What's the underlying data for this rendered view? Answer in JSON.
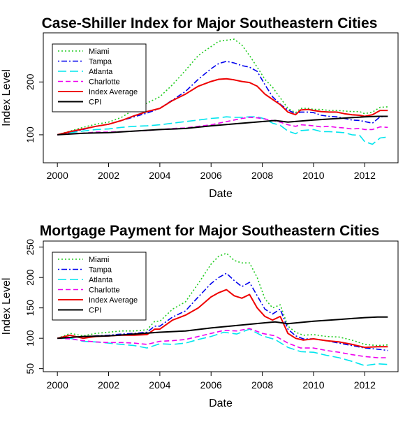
{
  "chart_data": [
    {
      "type": "line",
      "title": "Case-Shiller Index for Major Southeastern Cities",
      "xlabel": "Date",
      "ylabel": "Index Level",
      "xlim": [
        1999.45,
        2013.3
      ],
      "ylim": [
        47,
        293
      ],
      "xticks": [
        2000,
        2002,
        2004,
        2006,
        2008,
        2010,
        2012
      ],
      "yticks": [
        100,
        200
      ],
      "grid": false,
      "legend_position": "top-left",
      "series": [
        {
          "name": "Miami",
          "color": "#22cc22",
          "dash": "dotted",
          "x": [
            2000,
            2000.5,
            2001,
            2001.5,
            2002,
            2002.5,
            2003,
            2003.5,
            2004,
            2004.5,
            2005,
            2005.5,
            2006,
            2006.3,
            2006.6,
            2006.9,
            2007.2,
            2007.5,
            2007.8,
            2008.1,
            2008.4,
            2008.7,
            2009,
            2009.3,
            2009.5,
            2009.8,
            2010,
            2010.3,
            2010.6,
            2010.9,
            2011.2,
            2011.5,
            2011.8,
            2012,
            2012.3,
            2012.6,
            2012.9
          ],
          "y": [
            100,
            107,
            114,
            120,
            124,
            133,
            148,
            160,
            172,
            195,
            222,
            250,
            267,
            277,
            279,
            281,
            270,
            250,
            228,
            205,
            190,
            170,
            150,
            142,
            150,
            150,
            148,
            148,
            146,
            146,
            145,
            144,
            144,
            140,
            143,
            152,
            153
          ]
        },
        {
          "name": "Tampa",
          "color": "#0000ee",
          "dash": "dotdash",
          "x": [
            2000,
            2000.5,
            2001,
            2001.5,
            2002,
            2002.5,
            2003,
            2003.5,
            2004,
            2004.5,
            2005,
            2005.5,
            2006,
            2006.3,
            2006.6,
            2006.9,
            2007.2,
            2007.5,
            2007.8,
            2008.1,
            2008.4,
            2008.7,
            2009,
            2009.3,
            2009.5,
            2009.8,
            2010,
            2010.3,
            2010.6,
            2010.9,
            2011.2,
            2011.5,
            2011.8,
            2012,
            2012.3,
            2012.6,
            2012.9
          ],
          "y": [
            100,
            104,
            110,
            116,
            120,
            127,
            134,
            141,
            150,
            166,
            182,
            205,
            225,
            235,
            239,
            236,
            231,
            228,
            220,
            195,
            172,
            158,
            147,
            140,
            143,
            143,
            142,
            137,
            135,
            134,
            131,
            128,
            127,
            125,
            122,
            134,
            135
          ]
        },
        {
          "name": "Atlanta",
          "color": "#00e5ee",
          "dash": "longdash",
          "x": [
            2000,
            2000.5,
            2001,
            2001.5,
            2002,
            2002.5,
            2003,
            2003.5,
            2004,
            2004.5,
            2005,
            2005.5,
            2006,
            2006.3,
            2006.6,
            2006.9,
            2007.2,
            2007.5,
            2007.8,
            2008.1,
            2008.4,
            2008.7,
            2009,
            2009.3,
            2009.5,
            2009.8,
            2010,
            2010.3,
            2010.6,
            2010.9,
            2011.2,
            2011.5,
            2011.8,
            2012,
            2012.3,
            2012.6,
            2012.9
          ],
          "y": [
            100,
            104,
            107,
            110,
            111,
            114,
            116,
            117,
            119,
            122,
            125,
            128,
            131,
            132,
            134,
            133,
            133,
            134,
            134,
            130,
            122,
            118,
            107,
            102,
            108,
            109,
            110,
            106,
            106,
            105,
            104,
            100,
            99,
            87,
            82,
            94,
            96
          ]
        },
        {
          "name": "Charlotte",
          "color": "#ee00ee",
          "dash": "dashed",
          "x": [
            2000,
            2000.5,
            2001,
            2001.5,
            2002,
            2002.5,
            2003,
            2003.5,
            2004,
            2004.5,
            2005,
            2005.5,
            2006,
            2006.3,
            2006.6,
            2006.9,
            2007.2,
            2007.5,
            2007.8,
            2008.1,
            2008.4,
            2008.7,
            2009,
            2009.3,
            2009.5,
            2009.8,
            2010,
            2010.3,
            2010.6,
            2010.9,
            2011.2,
            2011.5,
            2011.8,
            2012,
            2012.3,
            2012.6,
            2012.9
          ],
          "y": [
            100,
            102,
            103,
            105,
            105,
            106,
            107,
            108,
            110,
            112,
            113,
            116,
            119,
            122,
            125,
            128,
            131,
            133,
            132,
            130,
            127,
            124,
            119,
            116,
            119,
            118,
            117,
            115,
            116,
            114,
            113,
            111,
            112,
            110,
            110,
            115,
            114
          ]
        },
        {
          "name": "Index Average",
          "color": "#ee0000",
          "dash": "solid",
          "width": 2,
          "x": [
            2000,
            2000.5,
            2001,
            2001.5,
            2002,
            2002.5,
            2003,
            2003.5,
            2004,
            2004.5,
            2005,
            2005.5,
            2006,
            2006.3,
            2006.6,
            2006.9,
            2007.2,
            2007.5,
            2007.8,
            2008.1,
            2008.4,
            2008.7,
            2009,
            2009.3,
            2009.5,
            2009.8,
            2010,
            2010.3,
            2010.6,
            2010.9,
            2011.2,
            2011.5,
            2011.8,
            2012,
            2012.3,
            2012.6,
            2012.9
          ],
          "y": [
            100,
            106,
            111,
            116,
            120,
            127,
            136,
            144,
            150,
            165,
            177,
            192,
            201,
            205,
            206,
            204,
            201,
            199,
            192,
            177,
            167,
            157,
            143,
            138,
            147,
            148,
            146,
            144,
            143,
            143,
            140,
            138,
            137,
            135,
            138,
            146,
            146
          ]
        },
        {
          "name": "CPI",
          "color": "#000000",
          "dash": "solid",
          "width": 2,
          "x": [
            2000,
            2001,
            2002,
            2003,
            2004,
            2005,
            2006,
            2007,
            2008,
            2008.5,
            2009,
            2009.5,
            2010,
            2011,
            2012,
            2012.5,
            2012.9
          ],
          "y": [
            100,
            103,
            104,
            107,
            110,
            112,
            117,
            121,
            125,
            127,
            124,
            126,
            128,
            131,
            134,
            135,
            135
          ]
        }
      ]
    },
    {
      "type": "line",
      "title": "Mortgage Payment for Major Southeastern Cities",
      "xlabel": "Date",
      "ylabel": "Index Level",
      "xlim": [
        1999.45,
        2013.3
      ],
      "ylim": [
        45,
        260
      ],
      "xticks": [
        2000,
        2002,
        2004,
        2006,
        2008,
        2010,
        2012
      ],
      "yticks": [
        50,
        100,
        150,
        200,
        250
      ],
      "grid": false,
      "legend_position": "top-left",
      "series": [
        {
          "name": "Miami",
          "color": "#22cc22",
          "dash": "dotted",
          "x": [
            2000,
            2000.5,
            2001,
            2001.5,
            2002,
            2002.5,
            2003,
            2003.5,
            2003.8,
            2004,
            2004.5,
            2005,
            2005.5,
            2006,
            2006.3,
            2006.6,
            2006.9,
            2007.2,
            2007.5,
            2007.8,
            2008.1,
            2008.4,
            2008.7,
            2009,
            2009.3,
            2009.6,
            2010,
            2010.5,
            2011,
            2011.5,
            2012,
            2012.5,
            2012.9
          ],
          "y": [
            100,
            108,
            104,
            108,
            110,
            112,
            112,
            114,
            128,
            128,
            148,
            160,
            190,
            222,
            235,
            240,
            228,
            224,
            224,
            200,
            165,
            150,
            155,
            120,
            110,
            105,
            106,
            103,
            102,
            97,
            90,
            88,
            89
          ]
        },
        {
          "name": "Tampa",
          "color": "#0000ee",
          "dash": "dotdash",
          "x": [
            2000,
            2000.5,
            2001,
            2001.5,
            2002,
            2002.5,
            2003,
            2003.5,
            2003.8,
            2004,
            2004.5,
            2005,
            2005.5,
            2006,
            2006.3,
            2006.6,
            2006.9,
            2007.2,
            2007.5,
            2007.8,
            2008.1,
            2008.4,
            2008.7,
            2009,
            2009.3,
            2009.6,
            2010,
            2010.5,
            2011,
            2011.5,
            2012,
            2012.5,
            2012.9
          ],
          "y": [
            100,
            105,
            100,
            104,
            105,
            107,
            108,
            110,
            120,
            120,
            135,
            145,
            168,
            190,
            200,
            207,
            195,
            185,
            192,
            170,
            148,
            140,
            148,
            115,
            104,
            99,
            99,
            96,
            92,
            88,
            84,
            82,
            80
          ]
        },
        {
          "name": "Atlanta",
          "color": "#00e5ee",
          "dash": "longdash",
          "x": [
            2000,
            2000.5,
            2001,
            2001.5,
            2002,
            2002.5,
            2003,
            2003.5,
            2004,
            2004.5,
            2005,
            2005.5,
            2006,
            2006.5,
            2007,
            2007.5,
            2008,
            2008.5,
            2009,
            2009.5,
            2010,
            2010.5,
            2011,
            2011.5,
            2012,
            2012.5,
            2012.9
          ],
          "y": [
            100,
            100,
            95,
            94,
            92,
            90,
            88,
            84,
            91,
            90,
            92,
            98,
            103,
            110,
            107,
            115,
            104,
            98,
            85,
            78,
            77,
            72,
            68,
            62,
            55,
            58,
            57
          ]
        },
        {
          "name": "Charlotte",
          "color": "#ee00ee",
          "dash": "dashed",
          "x": [
            2000,
            2000.5,
            2001,
            2001.5,
            2002,
            2002.5,
            2003,
            2003.5,
            2004,
            2004.5,
            2005,
            2005.5,
            2006,
            2006.5,
            2007,
            2007.5,
            2008,
            2008.5,
            2009,
            2009.5,
            2010,
            2010.5,
            2011,
            2011.5,
            2012,
            2012.5,
            2012.9
          ],
          "y": [
            100,
            99,
            96,
            94,
            93,
            93,
            92,
            90,
            95,
            96,
            98,
            103,
            108,
            113,
            112,
            116,
            108,
            104,
            92,
            84,
            84,
            80,
            77,
            73,
            70,
            68,
            68
          ]
        },
        {
          "name": "Index Average",
          "color": "#ee0000",
          "dash": "solid",
          "width": 2,
          "x": [
            2000,
            2000.5,
            2001,
            2001.5,
            2002,
            2002.5,
            2003,
            2003.5,
            2003.8,
            2004,
            2004.5,
            2005,
            2005.5,
            2006,
            2006.3,
            2006.6,
            2006.9,
            2007.2,
            2007.5,
            2007.8,
            2008.1,
            2008.4,
            2008.7,
            2009,
            2009.3,
            2009.6,
            2010,
            2010.5,
            2011,
            2011.5,
            2012,
            2012.5,
            2012.9
          ],
          "y": [
            100,
            105,
            100,
            103,
            104,
            105,
            105,
            106,
            115,
            115,
            130,
            138,
            150,
            168,
            175,
            180,
            170,
            166,
            172,
            150,
            136,
            130,
            136,
            108,
            100,
            97,
            99,
            96,
            94,
            90,
            85,
            86,
            86
          ]
        },
        {
          "name": "CPI",
          "color": "#000000",
          "dash": "solid",
          "width": 2,
          "x": [
            2000,
            2001,
            2002,
            2003,
            2004,
            2005,
            2006,
            2007,
            2008,
            2008.5,
            2009,
            2009.5,
            2010,
            2011,
            2012,
            2012.5,
            2012.9
          ],
          "y": [
            100,
            103,
            104,
            107,
            110,
            112,
            117,
            121,
            125,
            127,
            124,
            126,
            128,
            131,
            134,
            135,
            135
          ]
        }
      ]
    }
  ]
}
